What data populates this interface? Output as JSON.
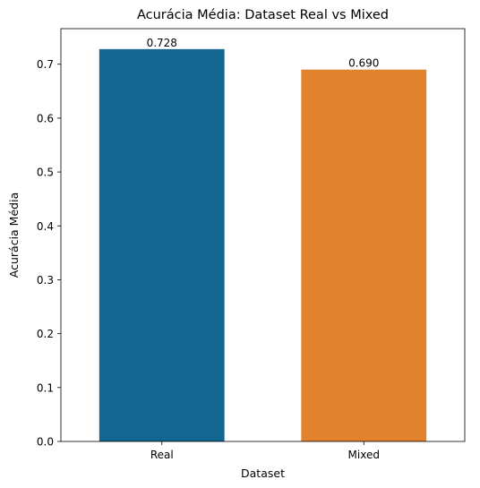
{
  "chart_data": {
    "type": "bar",
    "title": "Acurácia Média: Dataset Real vs Mixed",
    "xlabel": "Dataset",
    "ylabel": "Acurácia Média",
    "categories": [
      "Real",
      "Mixed"
    ],
    "values": [
      0.728,
      0.69
    ],
    "value_labels": [
      "0.728",
      "0.690"
    ],
    "colors": [
      "#13668f",
      "#e1822c"
    ],
    "ylim": [
      0,
      0.766
    ],
    "yticks": [
      0.0,
      0.1,
      0.2,
      0.3,
      0.4,
      0.5,
      0.6,
      0.7
    ],
    "ytick_labels": [
      "0.0",
      "0.1",
      "0.2",
      "0.3",
      "0.4",
      "0.5",
      "0.6",
      "0.7"
    ],
    "grid": false,
    "legend": "none"
  }
}
